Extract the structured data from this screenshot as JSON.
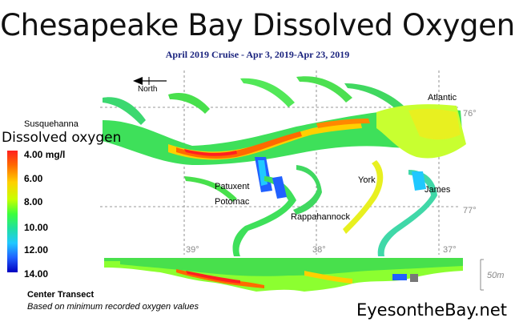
{
  "header": {
    "title": "Chesapeake Bay Dissolved Oxygen",
    "subtitle": "April 2019 Cruise - Apr 3, 2019-Apr 23, 2019"
  },
  "compass": {
    "label": "North"
  },
  "legend": {
    "title": "Dissolved oxygen",
    "ticks": [
      "4.00 mg/l",
      "6.00",
      "8.00",
      "10.00",
      "12.00",
      "14.00"
    ],
    "colors": [
      "#ff2020",
      "#ffd000",
      "#3cff3c",
      "#20c8ff",
      "#2060ff",
      "#0000c0"
    ]
  },
  "places": {
    "susquehanna": "Susquehanna",
    "atlantic": "Atlantic",
    "patuxent": "Patuxent",
    "potomac": "Potomac",
    "rappahannock": "Rappahannock",
    "york": "York",
    "james": "James"
  },
  "grid": {
    "lat_39": "39°",
    "lat_38": "38°",
    "lat_37": "37°",
    "lon_76": "76°",
    "lon_77": "77°"
  },
  "transect": {
    "label": "Center Transect",
    "note": "Based on minimum recorded oxygen values",
    "scale": "50m"
  },
  "brand": "EyesontheBay.net"
}
